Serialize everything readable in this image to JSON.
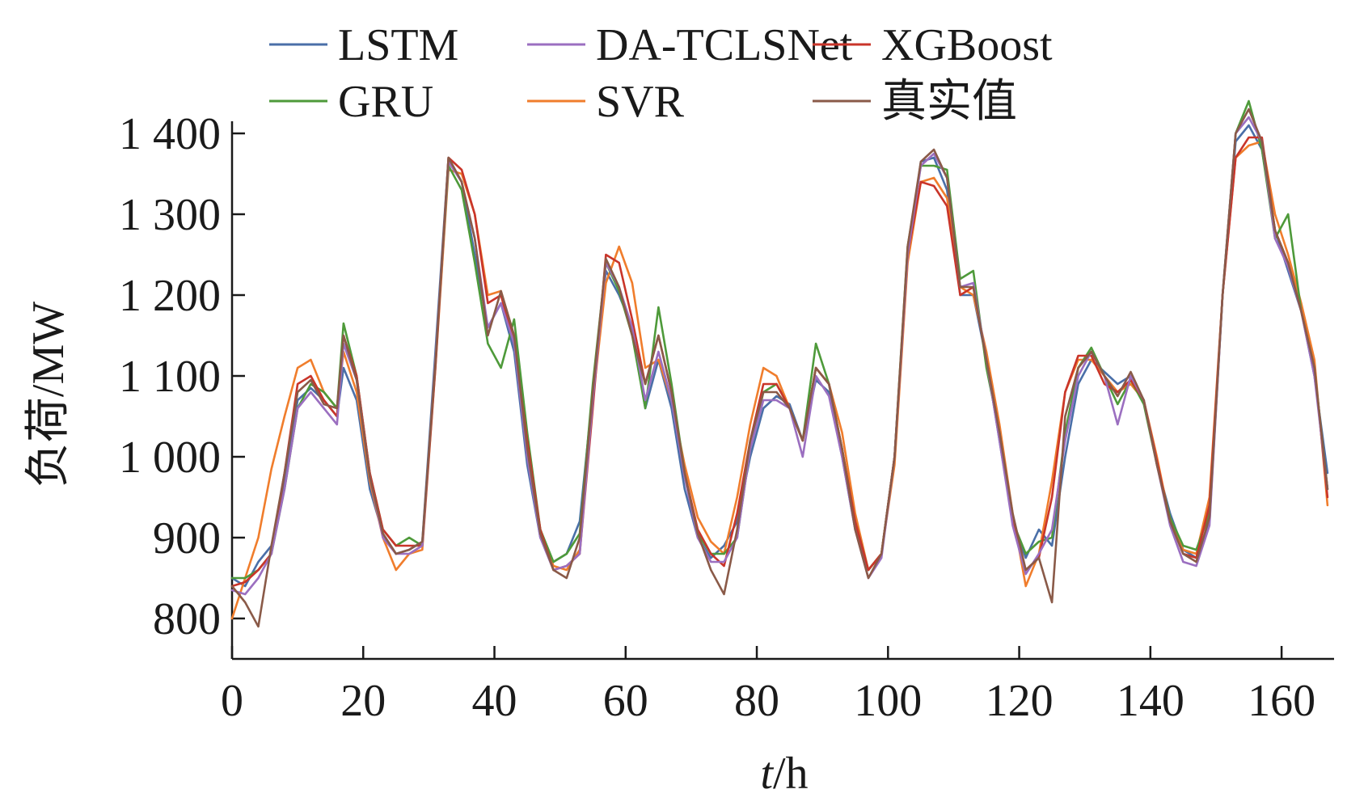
{
  "chart_data": {
    "type": "line",
    "xlabel_italic": "t",
    "xlabel_rest": "/h",
    "ylabel": "负荷/MW",
    "xlim": [
      0,
      168
    ],
    "ylim": [
      750,
      1415
    ],
    "xticks": [
      0,
      20,
      40,
      60,
      80,
      100,
      120,
      140,
      160
    ],
    "xtick_labels": [
      "0",
      "20",
      "40",
      "60",
      "80",
      "100",
      "120",
      "140",
      "160"
    ],
    "yticks": [
      800,
      900,
      1000,
      1100,
      1200,
      1300,
      1400
    ],
    "ytick_labels": [
      "800",
      "900",
      "1 000",
      "1 100",
      "1 200",
      "1 300",
      "1 400"
    ],
    "legend_position": "top",
    "grid": false,
    "x": [
      0,
      2,
      4,
      6,
      8,
      10,
      12,
      14,
      16,
      17,
      19,
      21,
      23,
      25,
      27,
      29,
      31,
      33,
      35,
      37,
      39,
      41,
      43,
      45,
      47,
      49,
      51,
      53,
      55,
      57,
      59,
      61,
      63,
      65,
      67,
      69,
      71,
      73,
      75,
      77,
      79,
      81,
      83,
      85,
      87,
      89,
      91,
      93,
      95,
      97,
      99,
      101,
      103,
      105,
      107,
      109,
      111,
      113,
      115,
      117,
      119,
      121,
      123,
      125,
      127,
      129,
      131,
      133,
      135,
      137,
      139,
      141,
      143,
      145,
      147,
      149,
      151,
      153,
      155,
      157,
      159,
      161,
      163,
      165,
      167
    ],
    "series": [
      {
        "name": "LSTM",
        "color": "#4a6fa8",
        "values": [
          850,
          840,
          870,
          890,
          970,
          1070,
          1085,
          1070,
          1050,
          1110,
          1070,
          960,
          905,
          880,
          885,
          895,
          1130,
          1370,
          1340,
          1250,
          1160,
          1190,
          1130,
          990,
          900,
          870,
          880,
          920,
          1080,
          1230,
          1200,
          1160,
          1060,
          1120,
          1060,
          960,
          900,
          875,
          890,
          920,
          1000,
          1060,
          1075,
          1065,
          1020,
          1095,
          1080,
          1000,
          910,
          860,
          880,
          1000,
          1250,
          1365,
          1370,
          1330,
          1200,
          1200,
          1120,
          1020,
          920,
          875,
          910,
          890,
          1000,
          1090,
          1120,
          1105,
          1090,
          1100,
          1070,
          990,
          930,
          885,
          875,
          920,
          1200,
          1390,
          1410,
          1380,
          1280,
          1230,
          1180,
          1100,
          980
        ]
      },
      {
        "name": "SVR",
        "color": "#f07d2c",
        "values": [
          800,
          850,
          900,
          985,
          1050,
          1110,
          1120,
          1080,
          1060,
          1130,
          1080,
          970,
          900,
          860,
          880,
          885,
          1110,
          1355,
          1350,
          1300,
          1200,
          1205,
          1150,
          1010,
          910,
          865,
          860,
          885,
          1070,
          1215,
          1260,
          1215,
          1110,
          1120,
          1070,
          990,
          925,
          895,
          880,
          950,
          1040,
          1110,
          1100,
          1060,
          1020,
          1110,
          1090,
          1030,
          930,
          860,
          880,
          990,
          1240,
          1340,
          1345,
          1320,
          1210,
          1200,
          1130,
          1040,
          930,
          840,
          880,
          970,
          1080,
          1120,
          1120,
          1100,
          1080,
          1090,
          1070,
          1000,
          920,
          885,
          880,
          950,
          1200,
          1370,
          1385,
          1390,
          1300,
          1250,
          1190,
          1120,
          940
        ]
      },
      {
        "name": "GRU",
        "color": "#4e9a3a",
        "values": [
          850,
          850,
          860,
          880,
          960,
          1060,
          1090,
          1080,
          1060,
          1165,
          1100,
          980,
          910,
          890,
          900,
          890,
          1120,
          1360,
          1330,
          1240,
          1140,
          1110,
          1170,
          1030,
          910,
          870,
          880,
          905,
          1090,
          1240,
          1205,
          1150,
          1060,
          1185,
          1090,
          980,
          905,
          880,
          880,
          900,
          1010,
          1080,
          1090,
          1060,
          1020,
          1140,
          1090,
          1010,
          920,
          860,
          880,
          1000,
          1260,
          1360,
          1360,
          1355,
          1220,
          1230,
          1110,
          1030,
          920,
          880,
          895,
          900,
          1030,
          1110,
          1135,
          1100,
          1065,
          1095,
          1065,
          990,
          925,
          890,
          885,
          930,
          1200,
          1400,
          1440,
          1380,
          1270,
          1300,
          1180,
          1110,
          960
        ]
      },
      {
        "name": "XGBoost",
        "color": "#c9352a",
        "values": [
          840,
          845,
          860,
          880,
          980,
          1090,
          1100,
          1070,
          1050,
          1150,
          1100,
          980,
          910,
          890,
          890,
          890,
          1110,
          1370,
          1355,
          1300,
          1190,
          1200,
          1140,
          1020,
          910,
          860,
          865,
          880,
          1060,
          1250,
          1240,
          1170,
          1090,
          1150,
          1080,
          980,
          910,
          880,
          865,
          930,
          1020,
          1090,
          1090,
          1060,
          1020,
          1110,
          1090,
          1010,
          920,
          860,
          880,
          1000,
          1250,
          1340,
          1335,
          1310,
          1200,
          1210,
          1120,
          1030,
          920,
          860,
          875,
          950,
          1080,
          1125,
          1125,
          1090,
          1080,
          1095,
          1070,
          995,
          920,
          880,
          875,
          940,
          1200,
          1370,
          1395,
          1395,
          1280,
          1240,
          1180,
          1110,
          950
        ]
      },
      {
        "name": "DA-TCLSNet",
        "color": "#9b6fc0",
        "values": [
          835,
          830,
          850,
          880,
          960,
          1060,
          1080,
          1060,
          1040,
          1140,
          1095,
          975,
          900,
          880,
          880,
          890,
          1120,
          1365,
          1340,
          1270,
          1160,
          1190,
          1140,
          1000,
          900,
          860,
          865,
          880,
          1070,
          1240,
          1210,
          1160,
          1070,
          1130,
          1070,
          975,
          900,
          870,
          870,
          900,
          1010,
          1070,
          1070,
          1060,
          1000,
          1100,
          1075,
          1000,
          910,
          850,
          875,
          1000,
          1250,
          1360,
          1375,
          1345,
          1210,
          1215,
          1120,
          1020,
          915,
          855,
          880,
          910,
          1020,
          1100,
          1130,
          1100,
          1040,
          1100,
          1070,
          990,
          915,
          870,
          865,
          915,
          1200,
          1400,
          1420,
          1390,
          1270,
          1235,
          1180,
          1100,
          960
        ]
      },
      {
        "name": "真实值",
        "color": "#8a5a48",
        "values": [
          840,
          820,
          790,
          890,
          980,
          1080,
          1095,
          1065,
          1060,
          1150,
          1095,
          975,
          905,
          880,
          885,
          895,
          1115,
          1370,
          1340,
          1270,
          1150,
          1205,
          1150,
          1010,
          905,
          860,
          850,
          900,
          1080,
          1245,
          1210,
          1150,
          1090,
          1150,
          1080,
          980,
          905,
          860,
          830,
          910,
          1020,
          1080,
          1080,
          1060,
          1020,
          1110,
          1090,
          1010,
          910,
          850,
          880,
          1000,
          1260,
          1365,
          1380,
          1345,
          1210,
          1210,
          1120,
          1030,
          930,
          860,
          875,
          820,
          1050,
          1110,
          1130,
          1100,
          1075,
          1105,
          1070,
          990,
          920,
          880,
          870,
          925,
          1200,
          1400,
          1430,
          1390,
          1280,
          1240,
          1180,
          1110,
          960
        ]
      }
    ]
  }
}
